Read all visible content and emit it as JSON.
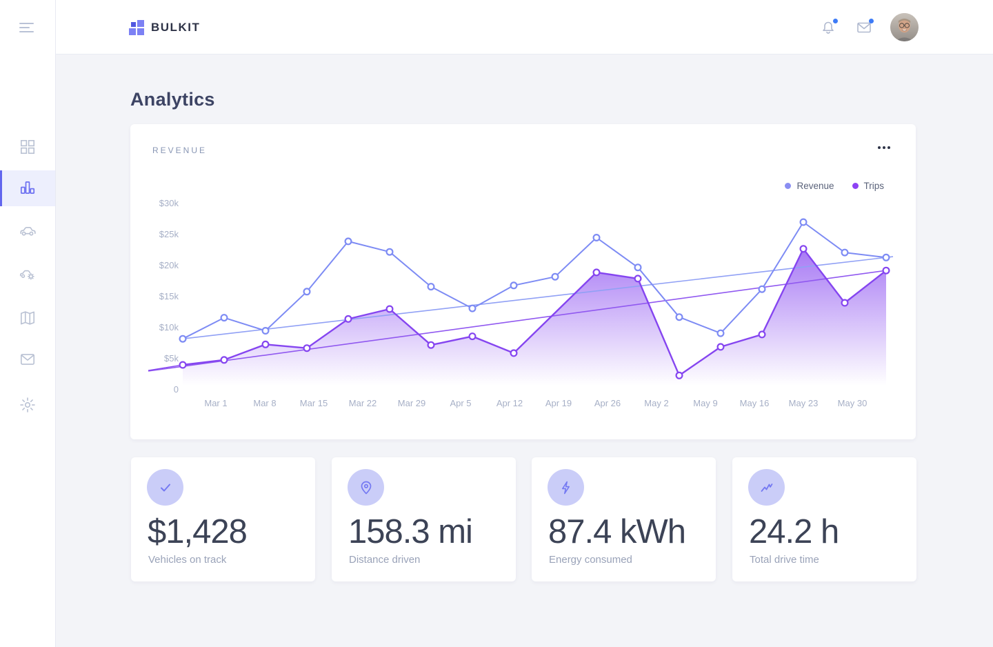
{
  "navbar": {
    "brand": "BULKIT",
    "notification_badge": true,
    "message_badge": true
  },
  "sidebar": {
    "items": [
      {
        "icon": "grid",
        "active": false
      },
      {
        "icon": "bar-chart",
        "active": true
      },
      {
        "icon": "car",
        "active": false
      },
      {
        "icon": "car-service",
        "active": false
      },
      {
        "icon": "map",
        "active": false
      },
      {
        "icon": "mail",
        "active": false
      },
      {
        "icon": "settings",
        "active": false
      }
    ]
  },
  "page": {
    "title": "Analytics"
  },
  "revenue_card": {
    "title": "REVENUE"
  },
  "chart_data": {
    "type": "line",
    "title": "REVENUE",
    "unit": "USD thousands",
    "x_tick_labels": [
      "Mar 1",
      "Mar 8",
      "Mar 15",
      "Mar 22",
      "Mar 29",
      "Apr 5",
      "Apr 12",
      "Apr 19",
      "Apr 26",
      "May 2",
      "May 9",
      "May 16",
      "May 23",
      "May 30"
    ],
    "y_ticks": [
      {
        "label": "$30k",
        "value": 30
      },
      {
        "label": "$25k",
        "value": 25
      },
      {
        "label": "$20k",
        "value": 20
      },
      {
        "label": "$15k",
        "value": 15
      },
      {
        "label": "$10k",
        "value": 10
      },
      {
        "label": "$5k",
        "value": 5
      },
      {
        "label": "0",
        "value": 0
      }
    ],
    "ylim_k": [
      0,
      30
    ],
    "legend": [
      {
        "label": "Revenue",
        "color": "#8a8ef2"
      },
      {
        "label": "Trips",
        "color": "#8d42f4"
      }
    ],
    "series": [
      {
        "name": "Revenue",
        "color": "#7d8bf4",
        "values_k": [
          8.2,
          11.6,
          9.5,
          15.8,
          23.9,
          22.2,
          16.6,
          13.1,
          16.8,
          18.2,
          24.5,
          19.7,
          11.7,
          9.1,
          16.2,
          27.0,
          22.1,
          21.3
        ],
        "trend": {
          "start_k": 8.2,
          "end_k": 21.3,
          "color": "#90a0f5"
        }
      },
      {
        "name": "Trips",
        "color": "#8545f0",
        "area_fill": true,
        "values_k": [
          4.0,
          4.8,
          7.3,
          6.7,
          11.4,
          13.0,
          7.2,
          8.6,
          5.9,
          12.4,
          18.9,
          17.9,
          2.3,
          6.9,
          8.9,
          22.7,
          14.0,
          19.2
        ],
        "hidden_markers": [
          9
        ],
        "lead_in_k": 3.1,
        "trend": {
          "start_k": 3.0,
          "end_k": 19.2,
          "color": "#9058f0"
        }
      }
    ]
  },
  "stat_cards": [
    {
      "icon": "check",
      "value": "$1,428",
      "label": "Vehicles on track"
    },
    {
      "icon": "map-pin",
      "value": "158.3 mi",
      "label": "Distance driven"
    },
    {
      "icon": "bolt",
      "value": "87.4 kWh",
      "label": "Energy consumed"
    },
    {
      "icon": "pulse",
      "value": "24.2 h",
      "label": "Total drive time"
    }
  ],
  "colors": {
    "accent": "#6d71f0",
    "badge_blue": "#3d7bf7",
    "text_dark": "#3c4356",
    "text_muted": "#99a2b8",
    "axis_text": "#a6afc6",
    "main_bg": "#f3f4f8"
  }
}
